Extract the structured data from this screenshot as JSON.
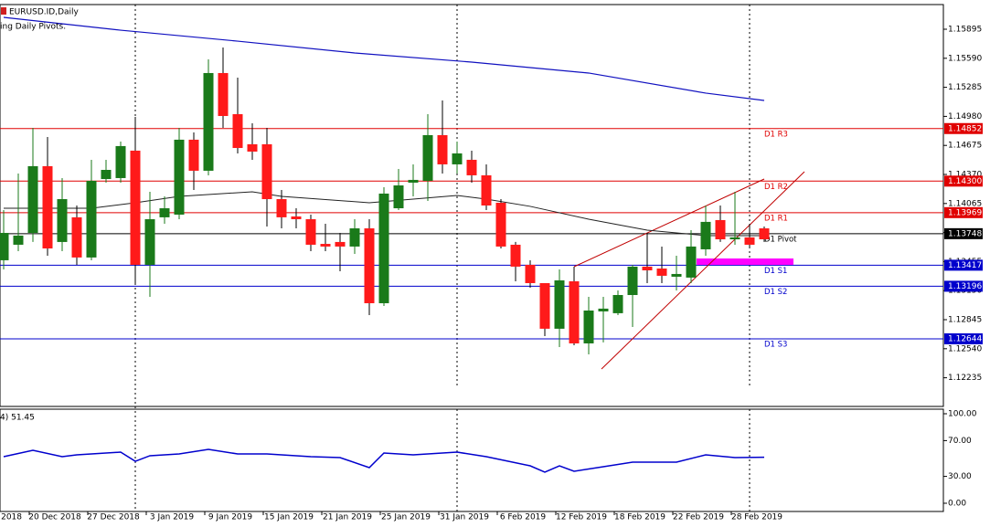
{
  "chart_data": {
    "type": "candlestick",
    "title": "EURUSD.ID,Daily",
    "subtitle": "ing Daily Pivots.",
    "ylim": [
      1.11934,
      1.16154
    ],
    "yticks": [
      1.15895,
      {
        "value": 1.1559,
        "label": "1.15590"
      },
      1.15285,
      {
        "value": 1.1498,
        "label": "1.14980"
      },
      1.14675,
      {
        "value": 1.1437,
        "label": "1.14370"
      },
      1.14065,
      {
        "value": 1.1376,
        "label": "1.13760"
      },
      1.13455,
      {
        "value": 1.1315,
        "label": "1.13150"
      },
      1.12845,
      {
        "value": 1.1254,
        "label": "1.12540"
      },
      1.12235
    ],
    "up_color": "#1a7a1a",
    "down_color": "#ff1a1a",
    "open": [
      1.13469,
      1.13632,
      1.13756,
      1.14457,
      1.13661,
      1.1392,
      1.13498,
      1.14322,
      1.14332,
      1.1462,
      1.13421,
      1.1392,
      1.13948,
      1.14735,
      1.14409,
      1.15435,
      1.15003,
      1.14687,
      1.14687,
      1.14111,
      1.13929,
      1.139,
      1.13641,
      1.13661,
      1.13613,
      1.13804,
      1.13018,
      1.14015,
      1.14284,
      1.14303,
      1.14783,
      1.14476,
      1.14524,
      1.14361,
      1.14073,
      1.13632,
      1.13421,
      1.13229,
      1.1275,
      1.13248,
      1.12596,
      1.12932,
      1.12913,
      1.13104,
      1.13402,
      1.13382,
      1.13296,
      1.13287,
      1.13584,
      1.13891,
      1.13689,
      1.13709,
      1.13804
    ],
    "high": [
      1.13996,
      1.1438,
      1.14859,
      1.14763,
      1.14332,
      1.14044,
      1.14524,
      1.14524,
      1.14715,
      1.14974,
      1.14188,
      1.1414,
      1.14859,
      1.14811,
      1.15579,
      1.15703,
      1.15387,
      1.14907,
      1.14859,
      1.14207,
      1.14015,
      1.13948,
      1.13852,
      1.13756,
      1.139,
      1.139,
      1.14236,
      1.14428,
      1.14476,
      1.15003,
      1.15147,
      1.14715,
      1.1462,
      1.14476,
      1.14111,
      1.13661,
      1.13469,
      1.13229,
      1.13373,
      1.13402,
      1.13085,
      1.13085,
      1.13152,
      1.13421,
      1.13756,
      1.13613,
      1.13517,
      1.13785,
      1.14044,
      1.14044,
      1.14188,
      1.13852,
      1.13824
    ],
    "low": [
      1.13373,
      1.13565,
      1.13661,
      1.13517,
      1.13565,
      1.13421,
      1.13469,
      1.14284,
      1.14284,
      1.13229,
      1.13085,
      1.13852,
      1.139,
      1.14207,
      1.14361,
      1.14859,
      1.14591,
      1.14524,
      1.13824,
      1.13804,
      1.13804,
      1.13565,
      1.13565,
      1.13354,
      1.13536,
      1.12893,
      1.12989,
      1.13996,
      1.1414,
      1.14092,
      1.1438,
      1.1438,
      1.14284,
      1.13996,
      1.13593,
      1.13248,
      1.13181,
      1.12673,
      1.12558,
      1.12577,
      1.12481,
      1.12606,
      1.12893,
      1.12769,
      1.13229,
      1.13229,
      1.13152,
      1.13229,
      1.13517,
      1.13661,
      1.13632,
      1.13613,
      1.13661
    ],
    "close": [
      1.13756,
      1.13728,
      1.14457,
      1.13593,
      1.14111,
      1.13498,
      1.14303,
      1.14418,
      1.14668,
      1.13421,
      1.139,
      1.14015,
      1.14735,
      1.14409,
      1.15435,
      1.14984,
      1.14648,
      1.1461,
      1.14111,
      1.1392,
      1.139,
      1.13632,
      1.13613,
      1.13613,
      1.13804,
      1.13018,
      1.14169,
      1.14255,
      1.14313,
      1.14783,
      1.14476,
      1.14591,
      1.14361,
      1.14044,
      1.13613,
      1.13402,
      1.13229,
      1.1275,
      1.13258,
      1.12596,
      1.12941,
      1.12961,
      1.13104,
      1.13402,
      1.13363,
      1.13306,
      1.13325,
      1.13613,
      1.13872,
      1.13689,
      1.13709,
      1.13632,
      1.13689
    ],
    "series": [
      {
        "color": "#1010c0",
        "x": [
          0,
          8,
          16,
          24,
          32,
          40,
          48,
          52
        ],
        "values": [
          1.1602,
          1.15885,
          1.1577,
          1.15646,
          1.1555,
          1.15435,
          1.15224,
          1.15147
        ]
      },
      {
        "color": "#222222",
        "x": [
          0,
          6,
          9,
          12,
          17,
          19,
          25,
          28,
          31,
          33,
          36,
          40,
          44,
          48,
          52
        ],
        "values": [
          1.14015,
          1.14015,
          1.14073,
          1.1414,
          1.14188,
          1.1414,
          1.14073,
          1.14111,
          1.1415,
          1.14111,
          1.14035,
          1.139,
          1.13785,
          1.13728,
          1.13728
        ]
      }
    ],
    "levels": [
      {
        "name": "D1 R3",
        "value": 1.14852,
        "label": "1.14852",
        "color": "#e00000"
      },
      {
        "name": "D1 R2",
        "value": 1.143,
        "label": "1.14300",
        "color": "#e00000"
      },
      {
        "name": "D1 R1",
        "value": 1.13969,
        "label": "1.13969",
        "color": "#e00000"
      },
      {
        "name": "D1 Pivot",
        "value": 1.13748,
        "label": "1.13748",
        "color": "#000000"
      },
      {
        "name": "D1 S1",
        "value": 1.13417,
        "label": "1.13417",
        "color": "#0000cc"
      },
      {
        "name": "D1 S2",
        "value": 1.13196,
        "label": "1.13196",
        "color": "#0000cc"
      },
      {
        "name": "D1 S3",
        "value": 1.12644,
        "label": "1.12644",
        "color": "#0000cc"
      }
    ],
    "x_labels": [
      "2018",
      "20 Dec 2018",
      "27 Dec 2018",
      "3 Jan 2019",
      "9 Jan 2019",
      "15 Jan 2019",
      "21 Jan 2019",
      "25 Jan 2019",
      "31 Jan 2019",
      "6 Feb 2019",
      "12 Feb 2019",
      "18 Feb 2019",
      "22 Feb 2019",
      "28 Feb 2019"
    ],
    "indicator": {
      "label": "4) 51.45",
      "ylim": [
        -9.2,
        105.1
      ],
      "yticks": [
        {
          "value": 100,
          "label": "100.00"
        },
        {
          "value": 70,
          "label": "70.00"
        },
        {
          "value": 30,
          "label": "30.00"
        },
        {
          "value": 0,
          "label": "0.00"
        }
      ],
      "color": "#0000cd",
      "x": [
        0,
        2,
        4,
        5,
        6,
        8,
        9,
        10,
        12,
        14,
        16,
        18,
        21,
        23,
        25,
        26,
        28,
        31,
        33,
        36,
        37,
        38,
        39,
        41,
        43,
        46,
        48,
        50,
        52
      ],
      "values": [
        52,
        59.2,
        52,
        54.1,
        55.1,
        57.1,
        46.9,
        53.1,
        55.1,
        60.2,
        55.1,
        55.1,
        52,
        51,
        39.8,
        56.1,
        54.1,
        57.1,
        52,
        41.8,
        34.7,
        41.8,
        35.7,
        40.8,
        45.9,
        45.9,
        54.1,
        51,
        51.45
      ]
    }
  }
}
